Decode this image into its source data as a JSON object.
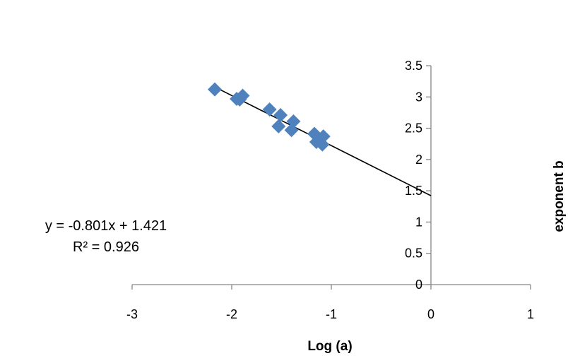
{
  "chart_data": {
    "type": "scatter",
    "title": "",
    "xlabel": "Log (a)",
    "ylabel": "exponent b",
    "xlim": [
      -3,
      1
    ],
    "ylim": [
      0,
      3.5
    ],
    "x_ticks": [
      -3,
      -2,
      -1,
      0,
      1
    ],
    "y_ticks": [
      0,
      0.5,
      1,
      1.5,
      2,
      2.5,
      3,
      3.5
    ],
    "grid": false,
    "legend": "none",
    "marker": "diamond",
    "marker_color": "#4f81bd",
    "series": [
      {
        "x": [
          -2.17,
          -1.95,
          -1.92,
          -1.89,
          -1.62,
          -1.51,
          -1.53,
          -1.38,
          -1.4,
          -1.17,
          -1.15,
          -1.08,
          -1.09
        ],
        "y": [
          3.12,
          2.97,
          2.96,
          3.02,
          2.8,
          2.71,
          2.53,
          2.61,
          2.47,
          2.41,
          2.28,
          2.37,
          2.24
        ]
      }
    ],
    "trendline": {
      "slope": -0.801,
      "intercept": 1.421,
      "x_start": -2.17,
      "x_end": 0,
      "color": "#000000",
      "equation_text": "y = -0.801x + 1.421",
      "r2_text": "R² = 0.926"
    }
  }
}
